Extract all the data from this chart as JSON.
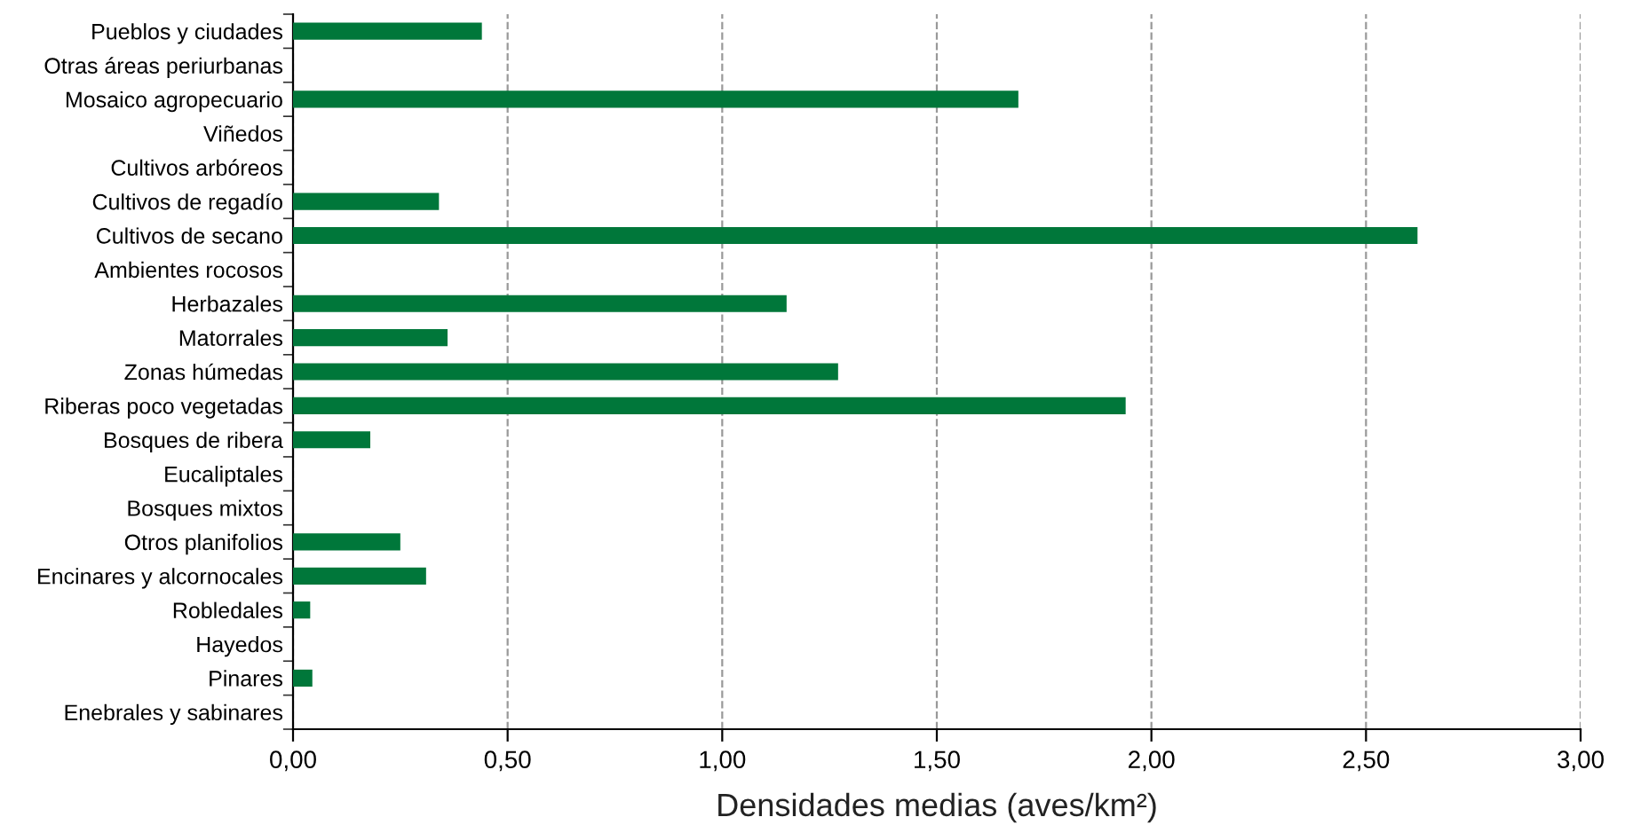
{
  "chart_data": {
    "type": "bar",
    "orientation": "horizontal",
    "xlabel": "Densidades medias (aves/km²)",
    "categories": [
      "Pueblos y ciudades",
      "Otras áreas periurbanas",
      "Mosaico agropecuario",
      "Viñedos",
      "Cultivos arbóreos",
      "Cultivos de regadío",
      "Cultivos de secano",
      "Ambientes rocosos",
      "Herbazales",
      "Matorrales",
      "Zonas húmedas",
      "Riberas poco vegetadas",
      "Bosques de ribera",
      "Eucaliptales",
      "Bosques mixtos",
      "Otros planifolios",
      "Encinares y alcornocales",
      "Robledales",
      "Hayedos",
      "Pinares",
      "Enebrales y sabinares"
    ],
    "values": [
      0.44,
      0,
      1.69,
      0,
      0,
      0.34,
      2.62,
      0,
      1.15,
      0.36,
      1.27,
      1.94,
      0.18,
      0,
      0,
      0.25,
      0.31,
      0.04,
      0,
      0.045,
      0
    ],
    "color": "#00773a",
    "xlim": [
      0,
      3
    ],
    "xticks": [
      {
        "value": 0,
        "label": "0,00"
      },
      {
        "value": 0.5,
        "label": "0,50"
      },
      {
        "value": 1,
        "label": "1,00"
      },
      {
        "value": 1.5,
        "label": "1,50"
      },
      {
        "value": 2,
        "label": "2,00"
      },
      {
        "value": 2.5,
        "label": "2,50"
      },
      {
        "value": 3,
        "label": "3,00"
      }
    ],
    "grid": "x"
  }
}
